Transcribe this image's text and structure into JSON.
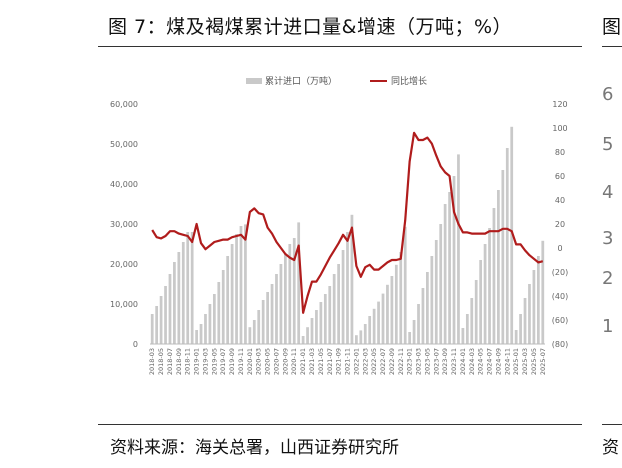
{
  "title": "图 7：煤及褐煤累计进口量&增速（万吨；%）",
  "source": "资料来源：海关总署，山西证券研究所",
  "edge": {
    "title_char": "图",
    "source_char": "资",
    "axis_chars": [
      "6",
      "5",
      "4",
      "3",
      "2",
      "1"
    ]
  },
  "colors": {
    "bar": "#c9c9c9",
    "line": "#b01c1c"
  },
  "chart_data": {
    "type": "bar",
    "title": "",
    "legend_position": "top-center",
    "grid": false,
    "series": [
      {
        "name": "累计进口（万吨）",
        "type": "bar",
        "axis": "left"
      },
      {
        "name": "同比增长",
        "type": "line",
        "axis": "right"
      }
    ],
    "y_left": {
      "range": [
        0,
        60000
      ],
      "ticks": [
        "60,000",
        "50,000",
        "40,000",
        "30,000",
        "20,000",
        "10,000",
        "0"
      ]
    },
    "y_right": {
      "range": [
        -80,
        120
      ],
      "ticks": [
        "120",
        "100",
        "80",
        "60",
        "40",
        "20",
        "0",
        "(20)",
        "(40)",
        "(60)",
        "(80)"
      ]
    },
    "categories": [
      "2018-03",
      "2018-04",
      "2018-05",
      "2018-06",
      "2018-07",
      "2018-08",
      "2018-09",
      "2018-10",
      "2018-11",
      "2018-12",
      "2019-01",
      "2019-02",
      "2019-03",
      "2019-04",
      "2019-05",
      "2019-06",
      "2019-07",
      "2019-08",
      "2019-09",
      "2019-10",
      "2019-11",
      "2019-12",
      "2020-01",
      "2020-02",
      "2020-03",
      "2020-04",
      "2020-05",
      "2020-06",
      "2020-07",
      "2020-08",
      "2020-09",
      "2020-10",
      "2020-11",
      "2020-12",
      "2021-01",
      "2021-02",
      "2021-03",
      "2021-04",
      "2021-05",
      "2021-06",
      "2021-07",
      "2021-08",
      "2021-09",
      "2021-10",
      "2021-11",
      "2021-12",
      "2022-01",
      "2022-02",
      "2022-03",
      "2022-04",
      "2022-05",
      "2022-06",
      "2022-07",
      "2022-08",
      "2022-09",
      "2022-10",
      "2022-11",
      "2022-12",
      "2023-01",
      "2023-02",
      "2023-03",
      "2023-04",
      "2023-05",
      "2023-06",
      "2023-07",
      "2023-08",
      "2023-09",
      "2023-10",
      "2023-11",
      "2023-12",
      "2024-01",
      "2024-02",
      "2024-03",
      "2024-04",
      "2024-05",
      "2024-06",
      "2024-07",
      "2024-08",
      "2024-09",
      "2024-10",
      "2024-11",
      "2024-12",
      "2025-01",
      "2025-02",
      "2025-03",
      "2025-04",
      "2025-05",
      "2025-06",
      "2025-07"
    ],
    "x_tick_labels": [
      "2018-03",
      "2018-05",
      "2018-07",
      "2018-09",
      "2018-11",
      "2019-01",
      "2019-03",
      "2019-05",
      "2019-07",
      "2019-09",
      "2019-11",
      "2020-01",
      "2020-03",
      "2020-05",
      "2020-07",
      "2020-09",
      "2020-11",
      "2021-01",
      "2021-03",
      "2021-05",
      "2021-07",
      "2021-09",
      "2021-11",
      "2022-01",
      "2022-03",
      "2022-05",
      "2022-07",
      "2022-09",
      "2022-11",
      "2023-01",
      "2023-03",
      "2023-05",
      "2023-07",
      "2023-09",
      "2023-11",
      "2024-01",
      "2024-03",
      "2024-05",
      "2024-07",
      "2024-09",
      "2024-11",
      "2025-01",
      "2025-03",
      "2025-05",
      "2025-07"
    ],
    "bar_values": [
      7500,
      9500,
      12000,
      14500,
      17500,
      20500,
      23000,
      25500,
      28000,
      28000,
      3500,
      5000,
      7500,
      10000,
      12500,
      15500,
      18500,
      22000,
      25000,
      27500,
      29500,
      29900,
      4200,
      6000,
      8500,
      11000,
      13000,
      15000,
      17500,
      20000,
      22500,
      25000,
      26500,
      30400,
      2000,
      4200,
      6500,
      8500,
      10500,
      12500,
      14500,
      17500,
      20000,
      23500,
      28000,
      32300,
      2200,
      3400,
      5000,
      7000,
      8800,
      10600,
      12600,
      14800,
      17000,
      19800,
      23000,
      29300,
      3000,
      6000,
      10000,
      14000,
      18000,
      22000,
      26000,
      30000,
      35000,
      38000,
      42000,
      47400,
      4000,
      7500,
      11500,
      16000,
      21000,
      25000,
      29000,
      34000,
      38500,
      43500,
      49000,
      54300,
      3500,
      7500,
      11500,
      15000,
      18500,
      22000,
      25800
    ],
    "growth_values": [
      15,
      9,
      8,
      10,
      14,
      14,
      12,
      11,
      10,
      5,
      20,
      4,
      -1,
      2,
      5,
      6,
      7,
      7,
      9,
      10,
      11,
      7,
      30,
      33,
      29,
      28,
      17,
      12,
      5,
      0,
      -5,
      -8,
      -10,
      2,
      -54,
      -40,
      -28,
      -28,
      -22,
      -15,
      -8,
      -2,
      4,
      11,
      6,
      17,
      -15,
      -24,
      -16,
      -14,
      -18,
      -18,
      -15,
      -12,
      -10,
      -10,
      -9,
      23,
      72,
      96,
      90,
      90,
      92,
      87,
      77,
      68,
      63,
      60,
      30,
      20,
      13,
      13,
      12,
      12,
      12,
      12,
      14,
      14,
      14,
      16,
      16,
      14,
      3,
      3,
      -2,
      -6,
      -9,
      -12,
      -11
    ]
  }
}
